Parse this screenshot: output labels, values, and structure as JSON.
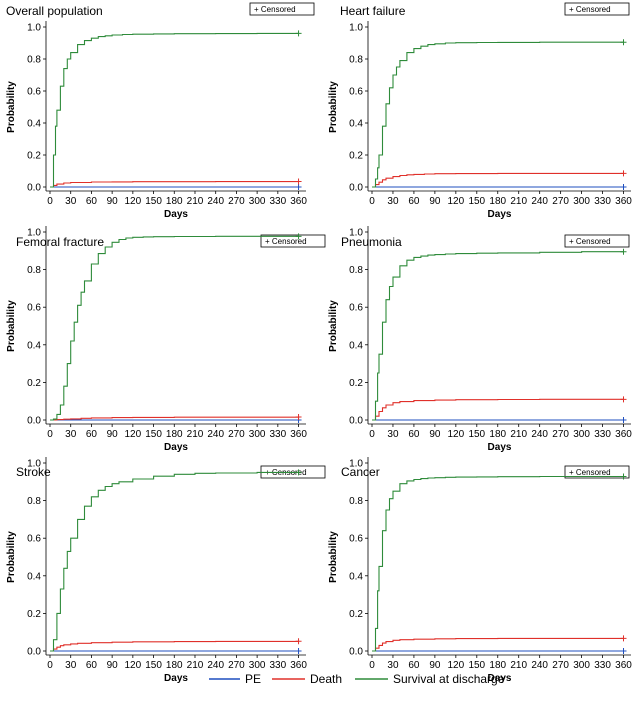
{
  "legend": [
    {
      "name": "PE",
      "color": "#1f4fbf"
    },
    {
      "name": "Death",
      "color": "#e0302a"
    },
    {
      "name": "Survival at discharge",
      "color": "#2e8b3a"
    }
  ],
  "censored_label": "+ Censored",
  "chart_data": [
    {
      "type": "line",
      "title": "Overall population",
      "xlabel": "Days",
      "ylabel": "Probability",
      "xlim": [
        0,
        365
      ],
      "ylim": [
        0,
        1
      ],
      "xticks": [
        0,
        30,
        60,
        90,
        120,
        150,
        180,
        210,
        240,
        270,
        300,
        330,
        360
      ],
      "yticks": [
        0.0,
        0.2,
        0.4,
        0.6,
        0.8,
        1.0
      ],
      "series": [
        {
          "name": "PE",
          "x": [
            0,
            360
          ],
          "y": [
            0.0,
            0.0
          ]
        },
        {
          "name": "Death",
          "x": [
            0,
            5,
            10,
            20,
            30,
            60,
            90,
            120,
            180,
            240,
            300,
            360
          ],
          "y": [
            0,
            0.01,
            0.018,
            0.025,
            0.028,
            0.031,
            0.032,
            0.033,
            0.033,
            0.034,
            0.034,
            0.034
          ]
        },
        {
          "name": "Survival at discharge",
          "x": [
            0,
            5,
            8,
            10,
            15,
            20,
            25,
            30,
            40,
            50,
            60,
            70,
            80,
            90,
            105,
            120,
            150,
            180,
            240,
            300,
            360
          ],
          "y": [
            0,
            0.2,
            0.38,
            0.48,
            0.63,
            0.74,
            0.8,
            0.84,
            0.89,
            0.915,
            0.93,
            0.94,
            0.945,
            0.95,
            0.953,
            0.955,
            0.957,
            0.958,
            0.959,
            0.96,
            0.96
          ]
        }
      ]
    },
    {
      "type": "line",
      "title": "Heart failure",
      "xlabel": "Days",
      "ylabel": "Probability",
      "xlim": [
        0,
        365
      ],
      "ylim": [
        0,
        1
      ],
      "xticks": [
        0,
        30,
        60,
        90,
        120,
        150,
        180,
        210,
        240,
        270,
        300,
        330,
        360
      ],
      "yticks": [
        0.0,
        0.2,
        0.4,
        0.6,
        0.8,
        1.0
      ],
      "series": [
        {
          "name": "PE",
          "x": [
            0,
            360
          ],
          "y": [
            0.0,
            0.0
          ]
        },
        {
          "name": "Death",
          "x": [
            0,
            5,
            10,
            15,
            20,
            30,
            40,
            50,
            60,
            75,
            90,
            120,
            180,
            240,
            360
          ],
          "y": [
            0,
            0.015,
            0.03,
            0.045,
            0.055,
            0.065,
            0.072,
            0.076,
            0.079,
            0.081,
            0.083,
            0.084,
            0.085,
            0.085,
            0.085
          ]
        },
        {
          "name": "Survival at discharge",
          "x": [
            0,
            5,
            8,
            10,
            15,
            20,
            25,
            30,
            35,
            40,
            50,
            60,
            70,
            80,
            90,
            105,
            120,
            150,
            180,
            240,
            300,
            360
          ],
          "y": [
            0,
            0.05,
            0.12,
            0.2,
            0.38,
            0.52,
            0.62,
            0.7,
            0.75,
            0.79,
            0.84,
            0.865,
            0.88,
            0.89,
            0.895,
            0.9,
            0.902,
            0.903,
            0.904,
            0.905,
            0.905,
            0.905
          ]
        }
      ]
    },
    {
      "type": "line",
      "title": "Femoral fracture",
      "xlabel": "Days",
      "ylabel": "Probability",
      "xlim": [
        0,
        365
      ],
      "ylim": [
        0,
        1
      ],
      "xticks": [
        0,
        30,
        60,
        90,
        120,
        150,
        180,
        210,
        240,
        270,
        300,
        330,
        360
      ],
      "yticks": [
        0.0,
        0.2,
        0.4,
        0.6,
        0.8,
        1.0
      ],
      "series": [
        {
          "name": "PE",
          "x": [
            0,
            360
          ],
          "y": [
            0.0,
            0.0
          ]
        },
        {
          "name": "Death",
          "x": [
            0,
            10,
            20,
            30,
            45,
            60,
            90,
            120,
            180,
            240,
            360
          ],
          "y": [
            0,
            0.002,
            0.004,
            0.006,
            0.009,
            0.011,
            0.013,
            0.014,
            0.015,
            0.015,
            0.016
          ]
        },
        {
          "name": "Survival at discharge",
          "x": [
            0,
            5,
            10,
            15,
            20,
            25,
            30,
            35,
            40,
            45,
            50,
            60,
            70,
            80,
            90,
            100,
            110,
            120,
            135,
            150,
            180,
            240,
            300,
            360
          ],
          "y": [
            0,
            0.005,
            0.03,
            0.08,
            0.18,
            0.3,
            0.42,
            0.52,
            0.61,
            0.68,
            0.74,
            0.83,
            0.885,
            0.92,
            0.945,
            0.96,
            0.968,
            0.972,
            0.974,
            0.975,
            0.976,
            0.977,
            0.977,
            0.977
          ]
        }
      ]
    },
    {
      "type": "line",
      "title": "Pneumonia",
      "xlabel": "Days",
      "ylabel": "Probability",
      "xlim": [
        0,
        365
      ],
      "ylim": [
        0,
        1
      ],
      "xticks": [
        0,
        30,
        60,
        90,
        120,
        150,
        180,
        210,
        240,
        270,
        300,
        330,
        360
      ],
      "yticks": [
        0.0,
        0.2,
        0.4,
        0.6,
        0.8,
        1.0
      ],
      "series": [
        {
          "name": "PE",
          "x": [
            0,
            360
          ],
          "y": [
            0.0,
            0.0
          ]
        },
        {
          "name": "Death",
          "x": [
            0,
            5,
            10,
            15,
            20,
            30,
            40,
            60,
            90,
            120,
            180,
            240,
            300,
            360
          ],
          "y": [
            0,
            0.02,
            0.045,
            0.065,
            0.08,
            0.092,
            0.098,
            0.103,
            0.106,
            0.108,
            0.109,
            0.11,
            0.11,
            0.11
          ]
        },
        {
          "name": "Survival at discharge",
          "x": [
            0,
            5,
            8,
            10,
            15,
            20,
            25,
            30,
            40,
            50,
            60,
            70,
            80,
            90,
            105,
            120,
            150,
            180,
            240,
            300,
            360
          ],
          "y": [
            0,
            0.1,
            0.25,
            0.35,
            0.52,
            0.64,
            0.71,
            0.76,
            0.82,
            0.85,
            0.865,
            0.872,
            0.877,
            0.88,
            0.883,
            0.885,
            0.887,
            0.889,
            0.892,
            0.895,
            0.895
          ]
        }
      ]
    },
    {
      "type": "line",
      "title": "Stroke",
      "xlabel": "Days",
      "ylabel": "Probability",
      "xlim": [
        0,
        365
      ],
      "ylim": [
        0,
        1
      ],
      "xticks": [
        0,
        30,
        60,
        90,
        120,
        150,
        180,
        210,
        240,
        270,
        300,
        330,
        360
      ],
      "yticks": [
        0.0,
        0.2,
        0.4,
        0.6,
        0.8,
        1.0
      ],
      "series": [
        {
          "name": "PE",
          "x": [
            0,
            360
          ],
          "y": [
            0.0,
            0.0
          ]
        },
        {
          "name": "Death",
          "x": [
            0,
            5,
            10,
            15,
            20,
            30,
            40,
            60,
            90,
            120,
            180,
            240,
            360
          ],
          "y": [
            0,
            0.01,
            0.02,
            0.028,
            0.033,
            0.038,
            0.041,
            0.044,
            0.047,
            0.049,
            0.05,
            0.051,
            0.052
          ]
        },
        {
          "name": "Survival at discharge",
          "x": [
            0,
            5,
            10,
            15,
            20,
            25,
            30,
            40,
            50,
            60,
            70,
            80,
            90,
            100,
            120,
            150,
            180,
            210,
            240,
            300,
            360
          ],
          "y": [
            0,
            0.06,
            0.2,
            0.33,
            0.44,
            0.53,
            0.6,
            0.7,
            0.77,
            0.82,
            0.855,
            0.875,
            0.89,
            0.9,
            0.915,
            0.93,
            0.94,
            0.945,
            0.947,
            0.95,
            0.95
          ]
        }
      ]
    },
    {
      "type": "line",
      "title": "Cancer",
      "xlabel": "Days",
      "ylabel": "Probability",
      "xlim": [
        0,
        365
      ],
      "ylim": [
        0,
        1
      ],
      "xticks": [
        0,
        30,
        60,
        90,
        120,
        150,
        180,
        210,
        240,
        270,
        300,
        330,
        360
      ],
      "yticks": [
        0.0,
        0.2,
        0.4,
        0.6,
        0.8,
        1.0
      ],
      "series": [
        {
          "name": "PE",
          "x": [
            0,
            360
          ],
          "y": [
            0.0,
            0.0
          ]
        },
        {
          "name": "Death",
          "x": [
            0,
            5,
            10,
            15,
            20,
            30,
            40,
            60,
            90,
            120,
            180,
            240,
            300,
            360
          ],
          "y": [
            0,
            0.015,
            0.03,
            0.042,
            0.05,
            0.057,
            0.06,
            0.063,
            0.065,
            0.066,
            0.067,
            0.067,
            0.067,
            0.067
          ]
        },
        {
          "name": "Survival at discharge",
          "x": [
            0,
            5,
            8,
            10,
            15,
            20,
            25,
            30,
            40,
            50,
            60,
            70,
            80,
            90,
            105,
            120,
            150,
            180,
            240,
            300,
            360
          ],
          "y": [
            0,
            0.12,
            0.32,
            0.45,
            0.64,
            0.75,
            0.81,
            0.85,
            0.89,
            0.905,
            0.912,
            0.917,
            0.92,
            0.922,
            0.924,
            0.925,
            0.926,
            0.927,
            0.928,
            0.928,
            0.928
          ]
        }
      ]
    }
  ]
}
